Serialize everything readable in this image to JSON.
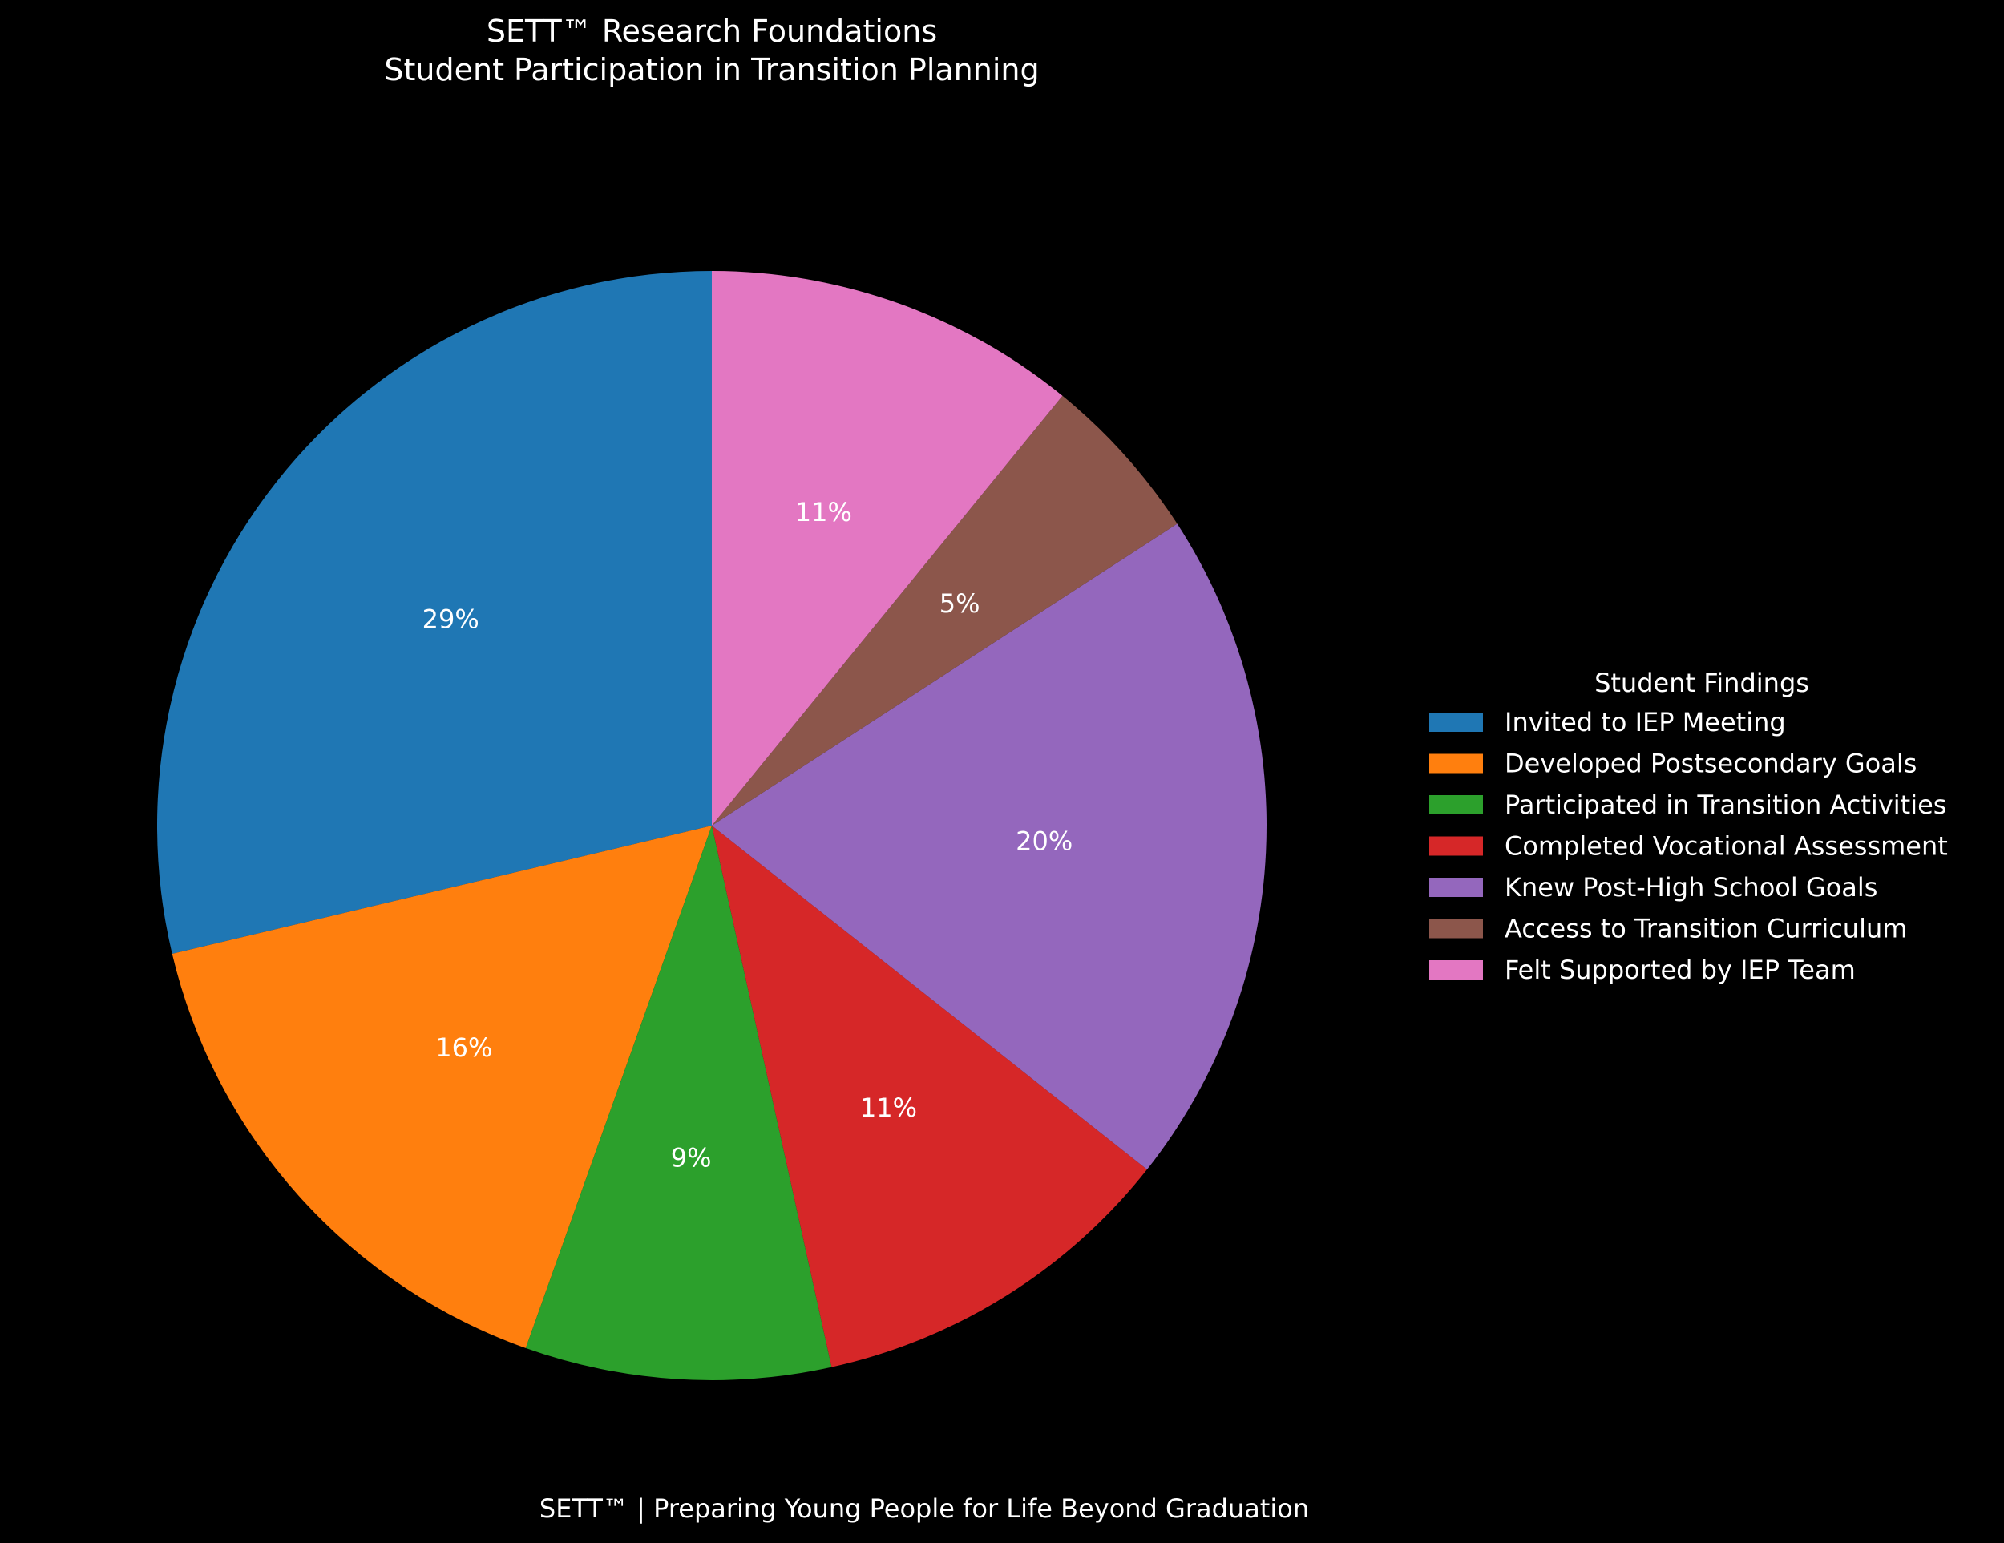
{
  "chart_data": {
    "type": "pie",
    "title": "SETT™ Research Foundations",
    "subtitle": "Student Participation in Transition Planning",
    "legend_title": "Student Findings",
    "legend_position": "right",
    "footer": "SETT™ | Preparing Young People for Life Beyond Graduation",
    "start_angle_deg": 90,
    "direction": "counterclockwise",
    "slices": [
      {
        "label": "Invited to IEP Meeting",
        "value": 29,
        "display": "29%",
        "color": "#1f77b4"
      },
      {
        "label": "Developed Postsecondary Goals",
        "value": 16,
        "display": "16%",
        "color": "#ff7f0e"
      },
      {
        "label": "Participated in Transition Activities",
        "value": 9,
        "display": "9%",
        "color": "#2ca02c"
      },
      {
        "label": "Completed Vocational Assessment",
        "value": 11,
        "display": "11%",
        "color": "#d62728"
      },
      {
        "label": "Knew Post-High School Goals",
        "value": 20,
        "display": "20%",
        "color": "#9467bd"
      },
      {
        "label": "Access to Transition Curriculum",
        "value": 5,
        "display": "5%",
        "color": "#8c564b"
      },
      {
        "label": "Felt Supported by IEP Team",
        "value": 11,
        "display": "11%",
        "color": "#e377c2"
      }
    ],
    "background": "#000000",
    "text_color": "#ffffff"
  }
}
